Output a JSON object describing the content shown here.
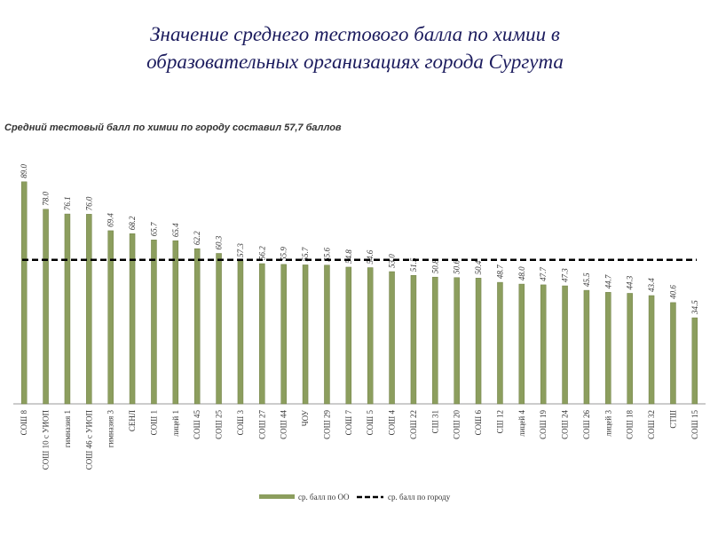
{
  "chart_data": {
    "type": "bar",
    "title": [
      "Значение среднего тестового балла по химии в",
      "образовательных организациях города Сургута"
    ],
    "subtitle": "Средний тестовый балл по химии по городу составил 57,7 баллов",
    "categories": [
      "СОШ 8",
      "СОШ 10 с УИОП",
      "гимназия 1",
      "СОШ 46 с УИОП",
      "гимназия 3",
      "СЕНЛ",
      "СОШ 1",
      "лицей 1",
      "СОШ 45",
      "СОШ 25",
      "СОШ 3",
      "СОШ 27",
      "СОШ 44",
      "ЧОУ",
      "СОШ 29",
      "СОШ 7",
      "СОШ 5",
      "СОШ 4",
      "СОШ 22",
      "СШ 31",
      "СОШ 20",
      "СОШ 6",
      "СШ 12",
      "лицей 4",
      "СОШ 19",
      "СОШ 24",
      "СОШ 26",
      "лицей 3",
      "СОШ 18",
      "СОШ 32",
      "СТШ",
      "СОШ 15"
    ],
    "series": [
      {
        "name": "ср. балл по ОО",
        "color": "#8c9e5e",
        "values": [
          89.0,
          78.0,
          76.1,
          76.0,
          69.4,
          68.2,
          65.7,
          65.4,
          62.2,
          60.3,
          57.3,
          56.2,
          55.9,
          55.7,
          55.6,
          54.8,
          54.6,
          53.0,
          51.5,
          50.8,
          50.6,
          50.4,
          48.7,
          48.0,
          47.7,
          47.3,
          45.5,
          44.7,
          44.3,
          43.4,
          40.6,
          34.5
        ],
        "value_labels": [
          "89.0",
          "78.0",
          "76.1",
          "76.0",
          "69.4",
          "68.2",
          "65.7",
          "65.4",
          "62.2",
          "60.3",
          "57.3",
          "56.2",
          "55.9",
          "55.7",
          "55.6",
          "54.8",
          "54.6",
          "53.0",
          "51.5",
          "50.8",
          "50.6",
          "50.4",
          "48.7",
          "48.0",
          "47.7",
          "47.3",
          "45.5",
          "44.7",
          "44.3",
          "43.4",
          "40.6",
          "34.5"
        ]
      }
    ],
    "reference_line": {
      "name": "ср. балл по городу",
      "value": 57.7,
      "color": "#000000"
    },
    "ylim": [
      0,
      90
    ]
  }
}
